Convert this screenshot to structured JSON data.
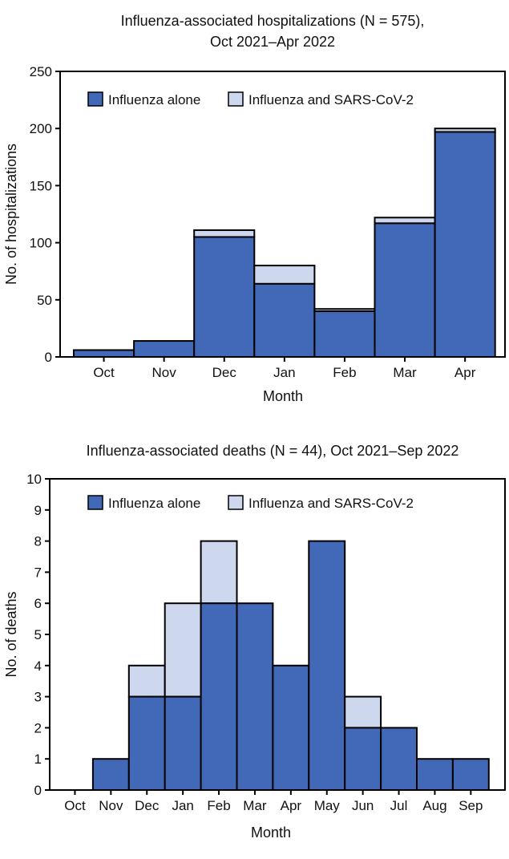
{
  "colors": {
    "alone": "#4169b8",
    "coinfected": "#cdd7ee",
    "stroke": "#000000"
  },
  "chart_data": [
    {
      "type": "bar",
      "stacked": true,
      "title_line1": "Influenza-associated hospitalizations (N = 575),",
      "title_line2": "Oct 2021–Apr 2022",
      "xlabel": "Month",
      "ylabel": "No. of hospitalizations",
      "ylim": [
        0,
        250
      ],
      "yticks": [
        0,
        50,
        100,
        150,
        200,
        250
      ],
      "categories": [
        "Oct",
        "Nov",
        "Dec",
        "Jan",
        "Feb",
        "Mar",
        "Apr"
      ],
      "legend_position": "top-left",
      "series": [
        {
          "name": "Influenza alone",
          "values": [
            6,
            14,
            105,
            64,
            40,
            117,
            197
          ]
        },
        {
          "name": "Influenza and SARS-CoV-2",
          "values": [
            0,
            0,
            6,
            16,
            2,
            5,
            3
          ]
        }
      ]
    },
    {
      "type": "bar",
      "stacked": true,
      "title_line1": "Influenza-associated deaths (N = 44), Oct 2021–Sep 2022",
      "xlabel": "Month",
      "ylabel": "No. of deaths",
      "ylim": [
        0,
        10
      ],
      "yticks": [
        0,
        1,
        2,
        3,
        4,
        5,
        6,
        7,
        8,
        9,
        10
      ],
      "categories": [
        "Oct",
        "Nov",
        "Dec",
        "Jan",
        "Feb",
        "Mar",
        "Apr",
        "May",
        "Jun",
        "Jul",
        "Aug",
        "Sep"
      ],
      "legend_position": "top-left",
      "series": [
        {
          "name": "Influenza alone",
          "values": [
            0,
            1,
            3,
            3,
            6,
            6,
            4,
            8,
            2,
            2,
            1,
            1
          ]
        },
        {
          "name": "Influenza and SARS-CoV-2",
          "values": [
            0,
            0,
            1,
            3,
            2,
            0,
            0,
            0,
            1,
            0,
            0,
            0
          ]
        }
      ]
    }
  ]
}
